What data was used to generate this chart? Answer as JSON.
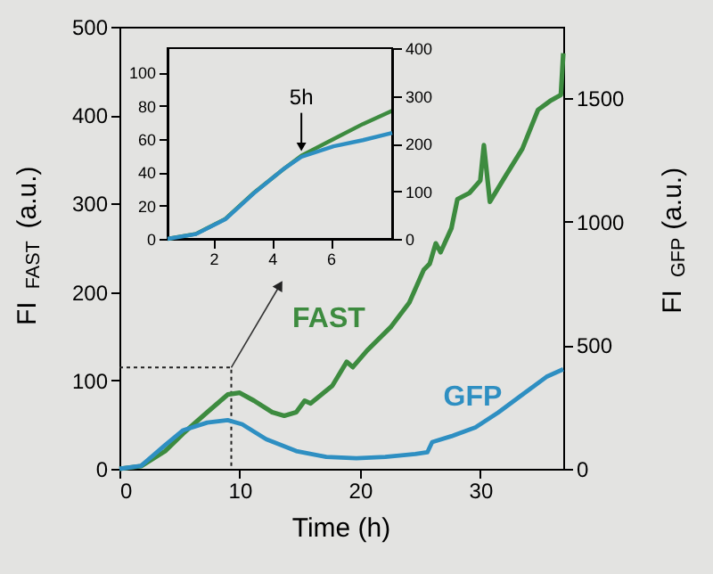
{
  "chart_data": [
    {
      "type": "line",
      "xlabel": "Time (h)",
      "ylabel": "FI$_{FAST}$ (a.u.)",
      "y2label": "FI$_{GFP}$ (a.u.)",
      "xlim": [
        0,
        36.9
      ],
      "xticks": [
        0,
        10,
        20,
        30
      ],
      "ylim": [
        0,
        500
      ],
      "yticks": [
        0,
        100,
        200,
        300,
        400,
        500
      ],
      "y2lim": [
        0,
        1788
      ],
      "y2ticks": [
        0,
        500,
        1000,
        1500
      ],
      "marker": "none",
      "series": [
        {
          "color": "#222222",
          "line_style": "dotted",
          "x": [
            0,
            9.3,
            9.3
          ],
          "values": [
            114.6,
            114.6,
            0
          ]
        },
        {
          "name": "FAST",
          "color": "#3d8b3f",
          "x": [
            0,
            1.8,
            3.8,
            5.3,
            7.3,
            9,
            10,
            11.2,
            12.7,
            13.7,
            14.7,
            15.4,
            15.9,
            17.7,
            18.9,
            19.4,
            20.6,
            22.6,
            24.1,
            25.3,
            25.8,
            26.3,
            26.7,
            27.6,
            28.1,
            29.1,
            30,
            30.3,
            30.8,
            32,
            33.5,
            34.8,
            35.8,
            36.7,
            36.9
          ],
          "values": [
            0,
            3,
            20,
            40,
            64,
            84,
            86,
            77,
            64,
            60,
            64,
            77,
            74,
            94,
            121,
            115,
            134,
            161,
            188,
            225,
            232,
            255,
            245,
            272,
            305,
            312,
            326,
            366,
            302,
            329,
            362,
            406,
            416,
            423,
            470
          ]
        },
        {
          "name": "GFP",
          "color": "#2e8fc2",
          "axis": "y2",
          "x": [
            0,
            1.8,
            3.8,
            5.3,
            7.3,
            9,
            10.2,
            12.2,
            14.7,
            17.2,
            19.7,
            22.1,
            24.6,
            25.6,
            26,
            27.6,
            29.6,
            31.5,
            33.5,
            35.5,
            36.9
          ],
          "values": [
            0,
            12,
            96,
            156,
            187,
            197,
            180,
            120,
            72,
            48,
            43,
            48,
            60,
            67,
            108,
            132,
            168,
            228,
            300,
            372,
            403
          ]
        }
      ]
    },
    {
      "type": "line",
      "xlim": [
        0.43,
        8.1
      ],
      "xticks": [
        2,
        4,
        6
      ],
      "ylim": [
        0,
        114.6
      ],
      "yticks": [
        0,
        20,
        40,
        60,
        80,
        100
      ],
      "y2lim": [
        0,
        400
      ],
      "y2ticks": [
        0,
        100,
        200,
        300,
        400
      ],
      "marker": "none",
      "annotations": [
        {
          "text": "5h",
          "x": 5,
          "y": 50
        }
      ],
      "series": [
        {
          "color": "#3d8b3f",
          "x": [
            0.43,
            1.4,
            2.4,
            3.4,
            4.4,
            5,
            6.1,
            7.1,
            8.1
          ],
          "values": [
            0,
            3,
            12,
            28,
            42,
            50,
            60,
            69,
            77
          ]
        },
        {
          "color": "#2e8fc2",
          "axis": "y2",
          "x": [
            0.43,
            1.4,
            2.4,
            3.4,
            4.4,
            5,
            6.1,
            7.1,
            8.1
          ],
          "values": [
            0,
            10,
            41,
            97,
            147,
            172,
            194,
            207,
            222
          ]
        }
      ]
    }
  ]
}
